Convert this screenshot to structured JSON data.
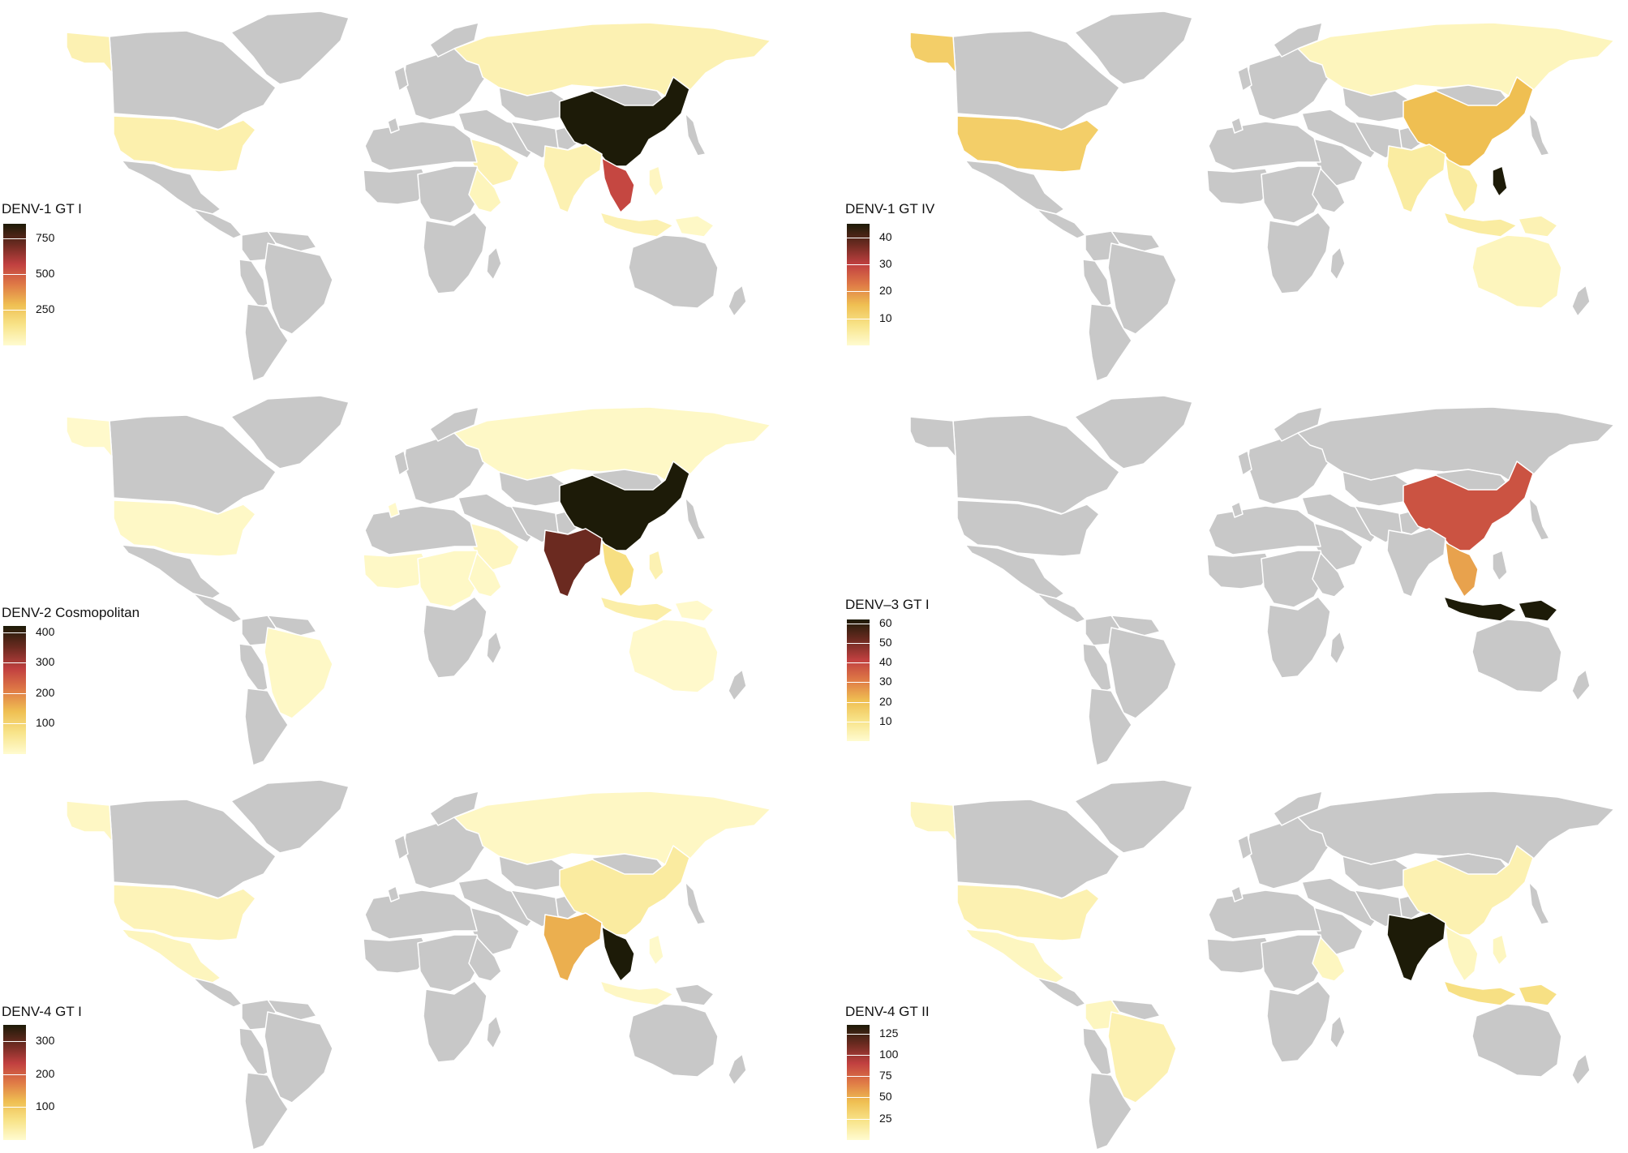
{
  "colors": {
    "land_no_data": "#c8c8c8",
    "border": "#ffffff",
    "scale": [
      "#fffbd0",
      "#f8e48a",
      "#efbf52",
      "#df7a46",
      "#c14040",
      "#6b2a20",
      "#1d1b08"
    ]
  },
  "panels": [
    {
      "id": "denv1-gti",
      "legend_title": "DENV-1 GT I",
      "scale_max": 850,
      "ticks": [
        750,
        500,
        250
      ],
      "regions": {
        "alaska": 60,
        "usa": 70,
        "russia": 60,
        "china": 850,
        "india": 60,
        "mainland_sea": 550,
        "arabia": 60,
        "east_africa": 40,
        "indonesia": 60,
        "philippines": 30,
        "png": 20
      }
    },
    {
      "id": "denv1-gtiv",
      "legend_title": "DENV-1 GT IV",
      "scale_max": 45,
      "ticks": [
        40,
        30,
        20,
        10
      ],
      "regions": {
        "alaska": 12,
        "usa": 12,
        "russia": 2,
        "china": 15,
        "india": 5,
        "mainland_sea": 5,
        "indonesia": 5,
        "philippines": 45,
        "australia": 2,
        "japan": 3,
        "png": 3
      }
    },
    {
      "id": "denv2-cosmo",
      "legend_title": "DENV-2 Cosmopolitan",
      "scale_max": 420,
      "ticks": [
        400,
        300,
        200,
        100
      ],
      "regions": {
        "alaska": 5,
        "usa": 10,
        "russia": 10,
        "china": 420,
        "india": 350,
        "mainland_sea": 80,
        "arabia": 15,
        "west_africa": 10,
        "central_africa": 10,
        "east_africa": 10,
        "brazil": 10,
        "australia": 5,
        "indonesia": 40,
        "philippines": 30,
        "png": 5,
        "europe_spot": 5
      }
    },
    {
      "id": "denv3-gti",
      "legend_title": "DENV–3 GT I",
      "scale_max": 62,
      "ticks": [
        60,
        50,
        40,
        30,
        20,
        10
      ],
      "regions": {
        "china": 38,
        "mainland_sea": 25,
        "indonesia": 62,
        "png": 62
      }
    },
    {
      "id": "denv4-gti",
      "legend_title": "DENV-4 GT I",
      "scale_max": 350,
      "ticks": [
        300,
        200,
        100
      ],
      "regions": {
        "alaska": 10,
        "usa": 20,
        "mexico": 15,
        "russia": 10,
        "china": 40,
        "india": 130,
        "mainland_sea": 350,
        "indonesia": 10,
        "philippines": 5
      }
    },
    {
      "id": "denv4-gtii",
      "legend_title": "DENV-4 GT II",
      "scale_max": 135,
      "ticks": [
        125,
        100,
        75,
        50,
        25
      ],
      "regions": {
        "alaska": 5,
        "usa": 10,
        "mexico": 5,
        "china": 10,
        "india": 135,
        "mainland_sea": 5,
        "indonesia": 25,
        "philippines": 5,
        "png": 25,
        "brazil": 10,
        "colombia": 5,
        "east_africa": 5
      }
    }
  ]
}
